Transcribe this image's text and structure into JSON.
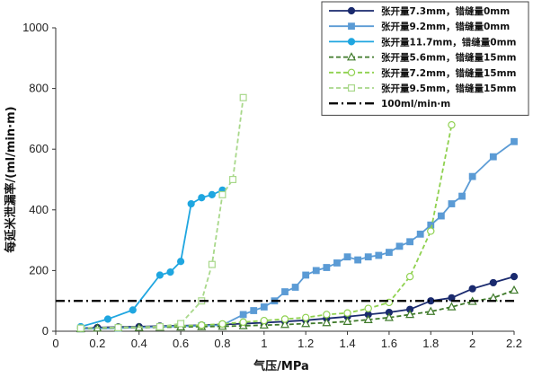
{
  "chart_data": {
    "type": "line",
    "xlabel": "气压/MPa",
    "ylabel": "每延米泄漏率/(ml/min·m)",
    "xlim": [
      0,
      2.2
    ],
    "ylim": [
      0,
      1000
    ],
    "xticks": [
      "0",
      "0.2",
      "0.4",
      "0.6",
      "0.8",
      "1",
      "1.2",
      "1.4",
      "1.6",
      "1.8",
      "2",
      "2.2"
    ],
    "yticks": [
      "0",
      "200",
      "400",
      "600",
      "800",
      "1000"
    ],
    "legend_position": "top-right",
    "series": [
      {
        "name": "张开量7.3mm，错缝量0mm",
        "color": "#1a2a6e",
        "marker": "circle-filled",
        "dash": "solid",
        "x": [
          0.12,
          0.2,
          0.3,
          0.4,
          0.5,
          0.6,
          0.7,
          0.8,
          0.9,
          1.0,
          1.1,
          1.2,
          1.3,
          1.4,
          1.5,
          1.6,
          1.7,
          1.8,
          1.9,
          2.0,
          2.1,
          2.2
        ],
        "y": [
          10,
          12,
          14,
          15,
          17,
          18,
          20,
          22,
          25,
          28,
          32,
          36,
          42,
          48,
          55,
          62,
          72,
          100,
          110,
          140,
          160,
          180
        ]
      },
      {
        "name": "张开量9.2mm，错缝量0mm",
        "color": "#5b9bd5",
        "marker": "square-filled",
        "dash": "solid",
        "x": [
          0.12,
          0.3,
          0.5,
          0.7,
          0.8,
          0.9,
          0.95,
          1.0,
          1.05,
          1.1,
          1.15,
          1.2,
          1.25,
          1.3,
          1.35,
          1.4,
          1.45,
          1.5,
          1.55,
          1.6,
          1.65,
          1.7,
          1.75,
          1.8,
          1.85,
          1.9,
          1.95,
          2.0,
          2.1,
          2.2
        ],
        "y": [
          8,
          10,
          14,
          18,
          20,
          55,
          68,
          80,
          100,
          130,
          145,
          185,
          200,
          210,
          225,
          245,
          235,
          245,
          250,
          260,
          280,
          295,
          320,
          350,
          380,
          420,
          445,
          510,
          575,
          625
        ]
      },
      {
        "name": "张开量11.7mm，错缝量0mm",
        "color": "#1fa6e0",
        "marker": "circle-filled",
        "dash": "solid",
        "x": [
          0.12,
          0.25,
          0.37,
          0.5,
          0.55,
          0.6,
          0.65,
          0.7,
          0.75,
          0.8
        ],
        "y": [
          15,
          40,
          70,
          185,
          195,
          230,
          420,
          440,
          450,
          465
        ]
      },
      {
        "name": "张开量5.6mm，错缝量15mm",
        "color": "#3f7a2a",
        "marker": "triangle-open",
        "dash": "dashed",
        "x": [
          0.12,
          0.2,
          0.3,
          0.4,
          0.5,
          0.6,
          0.7,
          0.8,
          0.9,
          1.0,
          1.1,
          1.2,
          1.3,
          1.4,
          1.5,
          1.6,
          1.7,
          1.8,
          1.9,
          2.0,
          2.1,
          2.2
        ],
        "y": [
          8,
          10,
          11,
          12,
          13,
          14,
          15,
          16,
          18,
          20,
          22,
          25,
          28,
          32,
          38,
          45,
          55,
          65,
          80,
          98,
          110,
          135
        ]
      },
      {
        "name": "张开量7.2mm，错缝量15mm",
        "color": "#8fd14f",
        "marker": "circle-open",
        "dash": "dashed",
        "x": [
          0.12,
          0.3,
          0.5,
          0.7,
          0.8,
          0.9,
          1.0,
          1.1,
          1.2,
          1.3,
          1.4,
          1.5,
          1.6,
          1.7,
          1.8,
          1.9
        ],
        "y": [
          10,
          12,
          15,
          20,
          24,
          30,
          35,
          40,
          45,
          55,
          60,
          75,
          95,
          180,
          330,
          680
        ]
      },
      {
        "name": "张开量9.5mm，错缝量15mm",
        "color": "#a8d88a",
        "marker": "square-open",
        "dash": "dashed",
        "x": [
          0.12,
          0.3,
          0.5,
          0.6,
          0.7,
          0.75,
          0.8,
          0.85,
          0.9
        ],
        "y": [
          10,
          12,
          15,
          25,
          100,
          220,
          450,
          500,
          770
        ]
      },
      {
        "name": "100ml/min·m",
        "color": "#000000",
        "marker": "none",
        "dash": "dashdot",
        "x": [
          0,
          2.2
        ],
        "y": [
          100,
          100
        ]
      }
    ]
  }
}
